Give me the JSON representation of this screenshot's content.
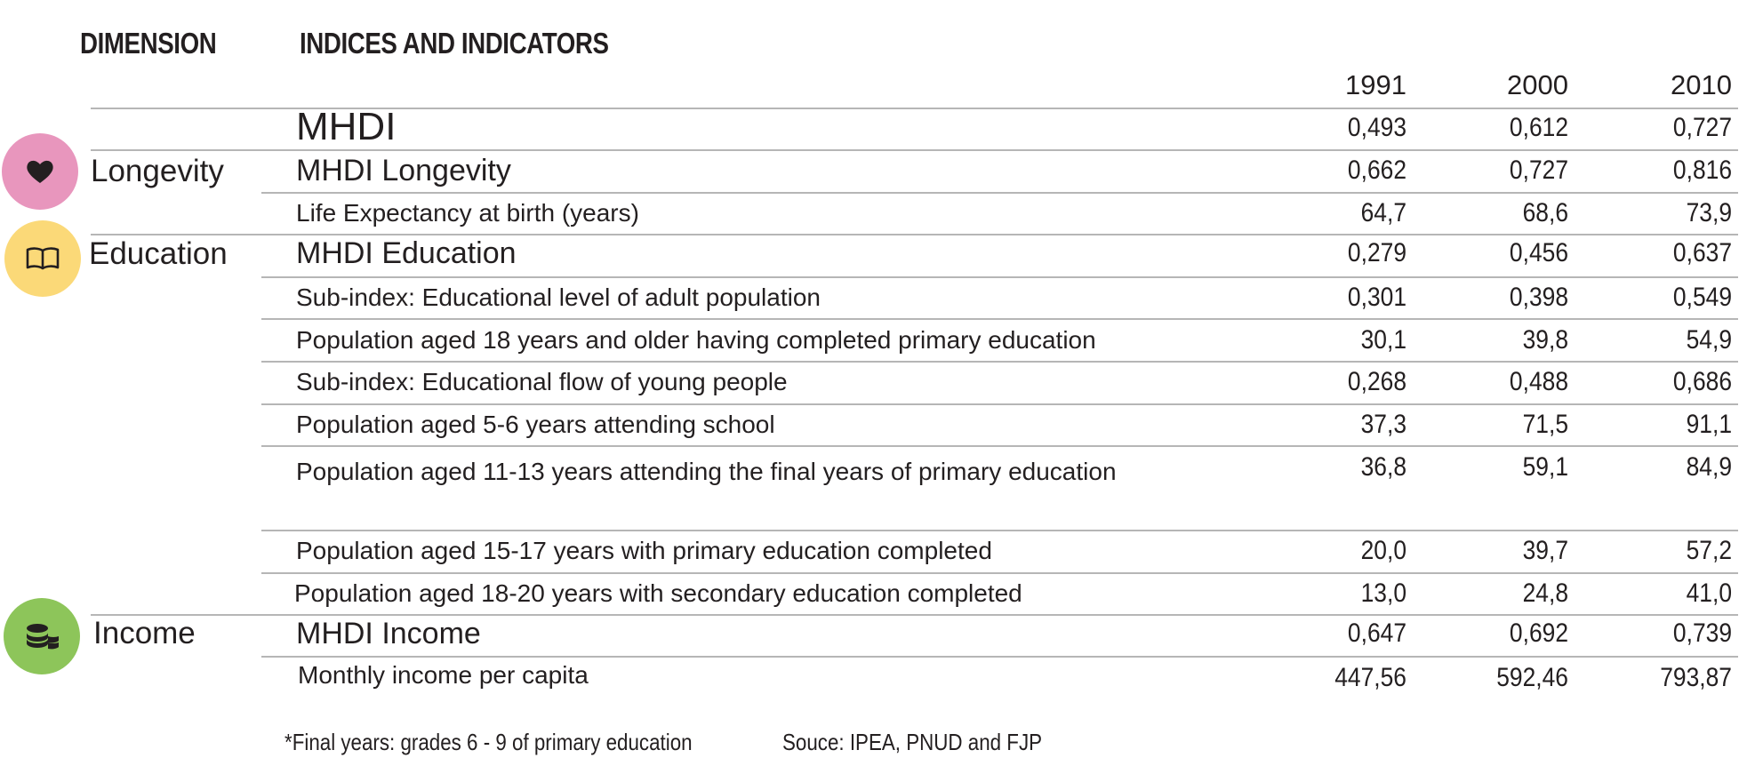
{
  "headers": {
    "dimension": "DIMENSION",
    "indicators": "INDICES AND INDICATORS"
  },
  "years": [
    "1991",
    "2000",
    "2010"
  ],
  "dimensions": {
    "longevity": {
      "label": "Longevity",
      "icon": "heart-icon",
      "color": "#e896bd"
    },
    "education": {
      "label": "Education",
      "icon": "book-icon",
      "color": "#fbd978"
    },
    "income": {
      "label": "Income",
      "icon": "coins-icon",
      "color": "#8dc55a"
    }
  },
  "rows": [
    {
      "label": "MHDI",
      "values": [
        "0,493",
        "0,612",
        "0,727"
      ]
    },
    {
      "label": "MHDI Longevity",
      "values": [
        "0,662",
        "0,727",
        "0,816"
      ]
    },
    {
      "label": "Life Expectancy at birth (years)",
      "values": [
        "64,7",
        "68,6",
        "73,9"
      ]
    },
    {
      "label": "MHDI Education",
      "values": [
        "0,279",
        "0,456",
        "0,637"
      ]
    },
    {
      "label": "Sub-index: Educational level of adult population",
      "values": [
        "0,301",
        "0,398",
        "0,549"
      ]
    },
    {
      "label": "Population aged 18 years and older having completed primary education",
      "values": [
        "30,1",
        "39,8",
        "54,9"
      ]
    },
    {
      "label": "Sub-index: Educational flow of young people",
      "values": [
        "0,268",
        "0,488",
        "0,686"
      ]
    },
    {
      "label": "Population aged 5-6 years attending school",
      "values": [
        "37,3",
        "71,5",
        "91,1"
      ]
    },
    {
      "label": "Population aged 11-13 years attending the final years of primary education",
      "values": [
        "36,8",
        "59,1",
        "84,9"
      ]
    },
    {
      "label": "Population aged 15-17 years with primary education completed",
      "values": [
        "20,0",
        "39,7",
        "57,2"
      ]
    },
    {
      "label": "Population aged 18-20 years with secondary education completed",
      "values": [
        "13,0",
        "24,8",
        "41,0"
      ]
    },
    {
      "label": "MHDI Income",
      "values": [
        "0,647",
        "0,692",
        "0,739"
      ]
    },
    {
      "label": "Monthly income per capita",
      "values": [
        "447,56",
        "592,46",
        "793,87"
      ]
    }
  ],
  "footnote": "*Final years: grades 6 - 9 of primary education",
  "source": "Souce: IPEA, PNUD and FJP"
}
